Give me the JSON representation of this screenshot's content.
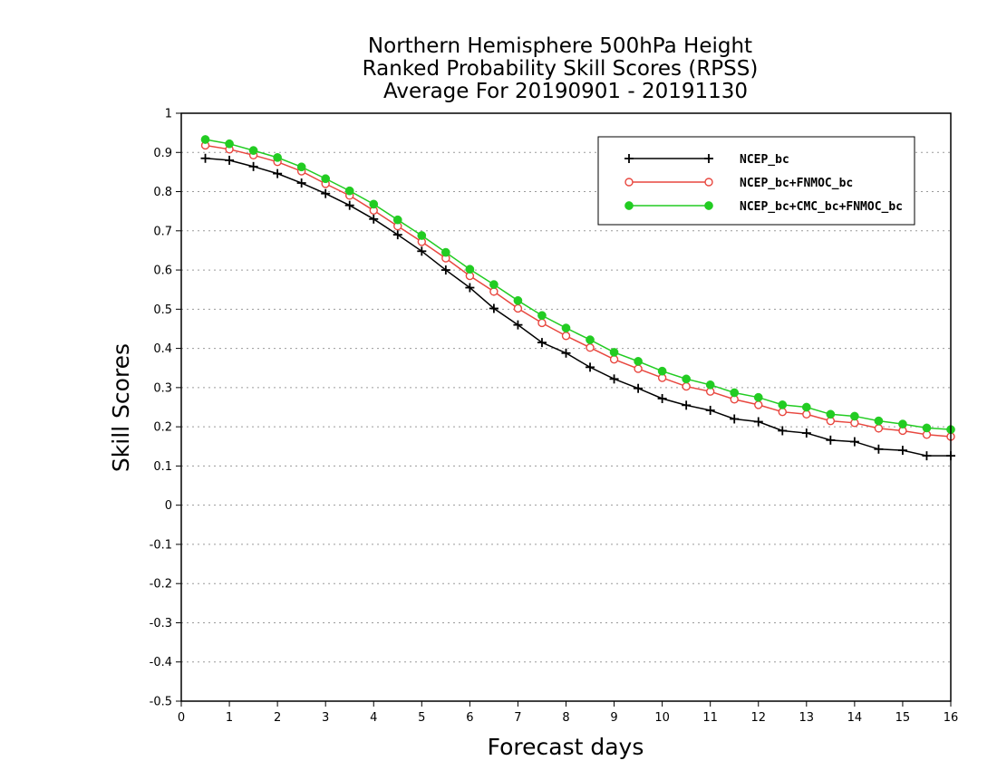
{
  "chart_data": {
    "type": "line",
    "title_lines": [
      "Northern Hemisphere 500hPa Height",
      "Ranked Probability Skill Scores (RPSS)",
      "Average For 20190901 - 20191130"
    ],
    "xlabel": "Forecast days",
    "ylabel": "Skill Scores",
    "xlim": [
      0,
      16
    ],
    "ylim": [
      -0.5,
      1
    ],
    "x_ticks": [
      0,
      1,
      2,
      3,
      4,
      5,
      6,
      7,
      8,
      9,
      10,
      11,
      12,
      13,
      14,
      15,
      16
    ],
    "y_ticks": [
      -0.5,
      -0.4,
      -0.3,
      -0.2,
      -0.1,
      0,
      0.1,
      0.2,
      0.3,
      0.4,
      0.5,
      0.6,
      0.7,
      0.8,
      0.9,
      1
    ],
    "y_tick_labels": [
      "-0.5",
      "-0.4",
      "-0.3",
      "-0.2",
      "-0.1",
      "0",
      "0.1",
      "0.2",
      "0.3",
      "0.4",
      "0.5",
      "0.6",
      "0.7",
      "0.8",
      "0.9",
      "1"
    ],
    "grid": "horizontal dotted",
    "legend_position": "top-right",
    "x": [
      0.5,
      1,
      1.5,
      2,
      2.5,
      3,
      3.5,
      4,
      4.5,
      5,
      5.5,
      6,
      6.5,
      7,
      7.5,
      8,
      8.5,
      9,
      9.5,
      10,
      10.5,
      11,
      11.5,
      12,
      12.5,
      13,
      13.5,
      14,
      14.5,
      15,
      15.5,
      16
    ],
    "series": [
      {
        "name": "NCEP_bc",
        "color": "#000000",
        "marker": "plus",
        "values": [
          0.885,
          0.88,
          0.864,
          0.846,
          0.822,
          0.795,
          0.765,
          0.73,
          0.69,
          0.648,
          0.6,
          0.555,
          0.502,
          0.46,
          0.415,
          0.388,
          0.352,
          0.322,
          0.298,
          0.272,
          0.255,
          0.242,
          0.22,
          0.213,
          0.19,
          0.184,
          0.166,
          0.162,
          0.143,
          0.14,
          0.126,
          0.126
        ]
      },
      {
        "name": "NCEP_bc+FNMOC_bc",
        "color": "#e8473f",
        "marker": "open-circle",
        "values": [
          0.918,
          0.908,
          0.893,
          0.876,
          0.852,
          0.82,
          0.79,
          0.752,
          0.712,
          0.672,
          0.63,
          0.585,
          0.545,
          0.502,
          0.465,
          0.432,
          0.402,
          0.372,
          0.348,
          0.325,
          0.303,
          0.29,
          0.27,
          0.256,
          0.238,
          0.232,
          0.215,
          0.21,
          0.196,
          0.19,
          0.18,
          0.175
        ]
      },
      {
        "name": "NCEP_bc+CMC_bc+FNMOC_bc",
        "color": "#22cc22",
        "marker": "filled-circle",
        "values": [
          0.933,
          0.922,
          0.905,
          0.887,
          0.863,
          0.833,
          0.802,
          0.768,
          0.728,
          0.688,
          0.645,
          0.602,
          0.563,
          0.522,
          0.484,
          0.452,
          0.422,
          0.39,
          0.367,
          0.342,
          0.322,
          0.307,
          0.287,
          0.275,
          0.256,
          0.25,
          0.232,
          0.227,
          0.215,
          0.207,
          0.197,
          0.193
        ]
      }
    ]
  }
}
